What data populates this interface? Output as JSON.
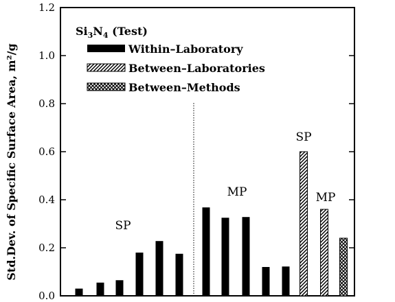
{
  "chart_data": {
    "type": "bar",
    "title": "",
    "xlabel": "",
    "ylabel": "Std.Dev. of Specific Surface Area, m²/g",
    "ylim": [
      0,
      1.2
    ],
    "yticks": [
      0.0,
      0.2,
      0.4,
      0.6,
      0.8,
      1.0,
      1.2
    ],
    "ytick_labels": [
      "0.0",
      "0.2",
      "0.4",
      "0.6",
      "0.8",
      "1.0",
      "1.2"
    ],
    "grid": false,
    "legend_position": "top-left",
    "legend": {
      "title_main": "Si",
      "title_sub1": "3",
      "title_mid": "N",
      "title_sub2": "4",
      "title_suffix": " (Test)",
      "entries": [
        {
          "name": "Within–Laboratory",
          "pattern": "solid"
        },
        {
          "name": "Between–Laboratories",
          "pattern": "hatch"
        },
        {
          "name": "Between–Methods",
          "pattern": "crosshatch"
        }
      ]
    },
    "series": [
      {
        "name": "Within–Laboratory",
        "pattern": "solid",
        "values": [
          0.03,
          0.055,
          0.065,
          0.18,
          0.228,
          0.175,
          0.368,
          0.325,
          0.328,
          0.12,
          0.122
        ]
      },
      {
        "name": "Between–Laboratories",
        "pattern": "hatch",
        "values": [
          0.6,
          0.36
        ]
      },
      {
        "name": "Between–Methods",
        "pattern": "crosshatch",
        "values": [
          0.24
        ]
      }
    ],
    "annotations": [
      {
        "text": "SP",
        "near": "within-lab SP group"
      },
      {
        "text": "MP",
        "near": "within-lab MP group"
      },
      {
        "text": "SP",
        "near": "between-lab SP bar"
      },
      {
        "text": "MP",
        "near": "between-lab MP bar"
      }
    ],
    "colors": {
      "bar": "#000000",
      "axis": "#000000",
      "background": "#ffffff"
    }
  }
}
